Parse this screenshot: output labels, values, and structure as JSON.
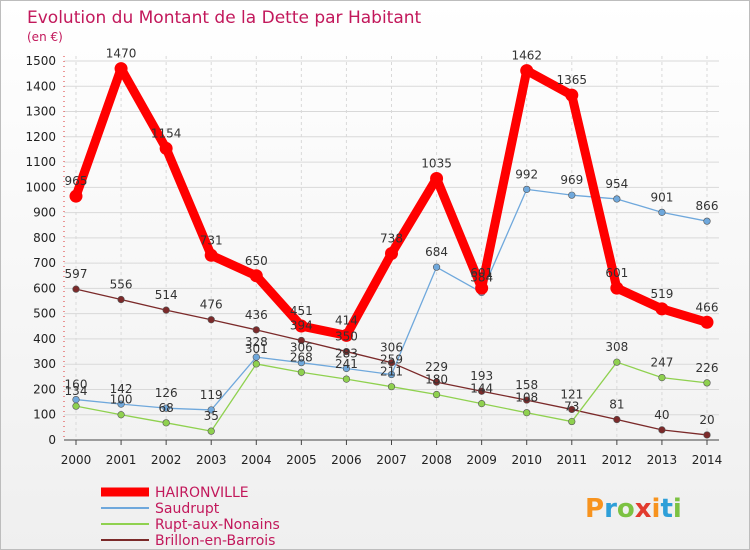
{
  "chart_data": {
    "type": "line",
    "title": "Evolution du Montant de la Dette par Habitant",
    "subtitle": "(en €)",
    "x": [
      "2000",
      "2001",
      "2002",
      "2003",
      "2004",
      "2005",
      "2006",
      "2007",
      "2008",
      "2009",
      "2010",
      "2011",
      "2012",
      "2013",
      "2014"
    ],
    "ylim": [
      0,
      1500
    ],
    "yticks": [
      0,
      100,
      200,
      300,
      400,
      500,
      600,
      700,
      800,
      900,
      1000,
      1100,
      1200,
      1300,
      1400,
      1500
    ],
    "grid": true,
    "legend_position": "bottom-left",
    "series": [
      {
        "name": "HAIRONVILLE",
        "color": "#ff0000",
        "values": [
          965,
          1470,
          1154,
          731,
          650,
          451,
          414,
          738,
          1035,
          601,
          1462,
          1365,
          601,
          519,
          466
        ]
      },
      {
        "name": "Saudrupt",
        "color": "#6fa8dc",
        "values": [
          160,
          142,
          126,
          119,
          328,
          306,
          283,
          259,
          684,
          584,
          992,
          969,
          954,
          901,
          866
        ]
      },
      {
        "name": "Rupt-aux-Nonains",
        "color": "#8fd14f",
        "values": [
          134,
          100,
          68,
          35,
          301,
          268,
          241,
          211,
          180,
          144,
          108,
          73,
          308,
          247,
          226
        ]
      },
      {
        "name": "Brillon-en-Barrois",
        "color": "#7b2a2a",
        "values": [
          597,
          556,
          514,
          476,
          436,
          394,
          350,
          306,
          229,
          193,
          158,
          121,
          81,
          40,
          20
        ]
      }
    ],
    "data_labels": {
      "HAIRONVILLE": [
        "965",
        "1470",
        "1154",
        "731",
        "650",
        "451",
        "414",
        "738",
        "1035",
        "601",
        "1462",
        "1365",
        "601",
        "519",
        "466"
      ],
      "Saudrupt": [
        "160",
        "142",
        "126",
        "119",
        "328",
        "306",
        "283",
        "259",
        "684",
        "584",
        "992",
        "969",
        "954",
        "901",
        "866"
      ],
      "Rupt-aux-Nonains": [
        "134",
        "100",
        "68",
        "35",
        "301",
        "268",
        "241",
        "211",
        "180",
        "144",
        "108",
        "73",
        "308",
        "247",
        "226"
      ],
      "Brillon-en-Barrois": [
        "597",
        "556",
        "514",
        "476",
        "436",
        "394",
        "350",
        "306",
        "229",
        "193",
        "158",
        "121",
        "81",
        "40",
        "20"
      ]
    }
  },
  "logo": {
    "text": "Proxiti",
    "letters": [
      "P",
      "r",
      "o",
      "x",
      "i",
      "t",
      "i"
    ],
    "colors": [
      "#f7931e",
      "#2e9fd8",
      "#7cc242",
      "#e23b2e",
      "#f7931e",
      "#2e9fd8",
      "#7cc242"
    ]
  }
}
